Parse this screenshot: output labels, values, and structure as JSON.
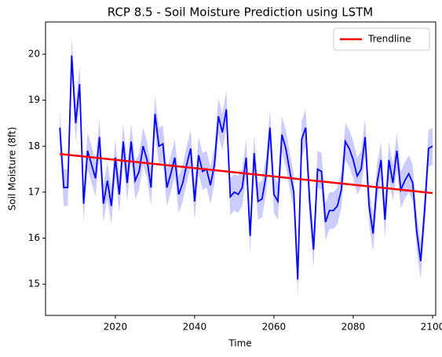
{
  "chart_data": {
    "type": "line",
    "title": "RCP 8.5 - Soil Moisture Prediction using LSTM",
    "xlabel": "Time",
    "ylabel": "Soil Moisture (8ft)",
    "xlim": [
      2002.4,
      2100.8
    ],
    "xticks": [
      2020,
      2040,
      2060,
      2080,
      2100
    ],
    "ylim": [
      14.32,
      20.7
    ],
    "yticks": [
      15,
      16,
      17,
      18,
      19,
      20
    ],
    "legend": "upper right",
    "series": [
      {
        "color": "#0000ff",
        "band_color": "#0000ff",
        "x": [
          2006,
          2007,
          2008,
          2009,
          2010,
          2011,
          2012,
          2013,
          2014,
          2015,
          2016,
          2017,
          2018,
          2019,
          2020,
          2021,
          2022,
          2023,
          2024,
          2025,
          2026,
          2027,
          2028,
          2029,
          2030,
          2031,
          2032,
          2033,
          2034,
          2035,
          2036,
          2037,
          2038,
          2039,
          2040,
          2041,
          2042,
          2043,
          2044,
          2045,
          2046,
          2047,
          2048,
          2049,
          2050,
          2051,
          2052,
          2053,
          2054,
          2055,
          2056,
          2057,
          2058,
          2059,
          2060,
          2061,
          2062,
          2063,
          2064,
          2065,
          2066,
          2067,
          2068,
          2069,
          2070,
          2071,
          2072,
          2073,
          2074,
          2075,
          2076,
          2077,
          2078,
          2079,
          2080,
          2081,
          2082,
          2083,
          2084,
          2085,
          2086,
          2087,
          2088,
          2089,
          2090,
          2091,
          2092,
          2093,
          2094,
          2095,
          2096,
          2097,
          2098,
          2099,
          2100
        ],
        "values": [
          18.4,
          17.1,
          17.1,
          19.97,
          18.5,
          19.35,
          16.75,
          17.9,
          17.6,
          17.3,
          18.2,
          16.75,
          17.25,
          16.7,
          17.75,
          16.95,
          18.1,
          17.2,
          18.1,
          17.25,
          17.45,
          18.0,
          17.7,
          17.1,
          18.7,
          18.0,
          18.05,
          17.1,
          17.4,
          17.75,
          16.95,
          17.2,
          17.6,
          17.95,
          16.8,
          17.8,
          17.45,
          17.5,
          17.15,
          17.6,
          18.65,
          18.3,
          18.8,
          16.9,
          17.0,
          16.95,
          17.1,
          17.75,
          16.05,
          17.85,
          16.8,
          16.85,
          17.35,
          18.4,
          16.95,
          16.8,
          18.25,
          17.95,
          17.45,
          17.0,
          15.1,
          18.15,
          18.4,
          16.8,
          15.75,
          17.5,
          17.45,
          16.35,
          16.6,
          16.6,
          16.7,
          17.05,
          18.1,
          17.95,
          17.7,
          17.35,
          17.5,
          18.2,
          16.7,
          16.1,
          17.2,
          17.7,
          16.4,
          17.7,
          17.2,
          17.9,
          17.05,
          17.25,
          17.4,
          17.2,
          16.15,
          15.5,
          16.6,
          17.95,
          18.0
        ],
        "ci": [
          0.4,
          0.4,
          0.4,
          0.4,
          0.4,
          0.4,
          0.4,
          0.4,
          0.4,
          0.4,
          0.4,
          0.4,
          0.4,
          0.4,
          0.4,
          0.4,
          0.4,
          0.4,
          0.4,
          0.4,
          0.4,
          0.4,
          0.4,
          0.4,
          0.4,
          0.4,
          0.4,
          0.4,
          0.4,
          0.4,
          0.4,
          0.4,
          0.4,
          0.4,
          0.4,
          0.4,
          0.4,
          0.4,
          0.4,
          0.4,
          0.4,
          0.4,
          0.4,
          0.4,
          0.4,
          0.4,
          0.4,
          0.4,
          0.4,
          0.4,
          0.4,
          0.4,
          0.4,
          0.4,
          0.4,
          0.4,
          0.4,
          0.4,
          0.4,
          0.4,
          0.4,
          0.4,
          0.4,
          0.4,
          0.4,
          0.4,
          0.4,
          0.4,
          0.4,
          0.4,
          0.4,
          0.4,
          0.4,
          0.4,
          0.4,
          0.4,
          0.4,
          0.4,
          0.4,
          0.4,
          0.4,
          0.4,
          0.4,
          0.4,
          0.4,
          0.4,
          0.4,
          0.4,
          0.4,
          0.4,
          0.4,
          0.4,
          0.4,
          0.4,
          0.4
        ]
      },
      {
        "name": "Trendline",
        "color": "#ff0000",
        "x": [
          2006,
          2100
        ],
        "values": [
          17.83,
          16.98
        ]
      }
    ]
  }
}
